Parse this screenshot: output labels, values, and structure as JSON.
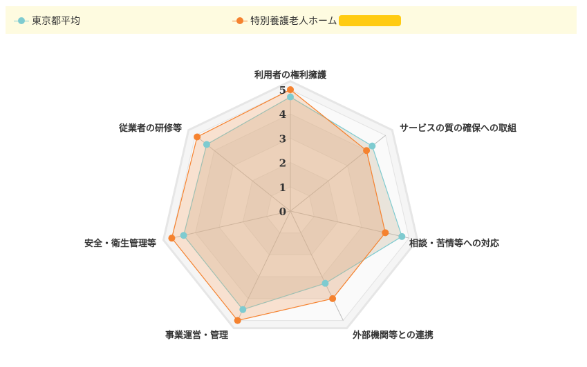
{
  "legend": {
    "items": [
      {
        "label": "東京都平均",
        "color": "#7ecbd0"
      },
      {
        "label": "特別養護老人ホーム",
        "color": "#f5822f",
        "redacted_color": "#ffcb12"
      }
    ]
  },
  "chart_data": {
    "type": "radar",
    "categories": [
      "利用者の権利擁護",
      "サービスの質の確保への取組",
      "相談・苦情等への対応",
      "外部機関等との連携",
      "事業運営・管理",
      "安全・衛生管理等",
      "従業者の研修等"
    ],
    "ticks": [
      "0",
      "1",
      "2",
      "3",
      "4",
      "5"
    ],
    "range": [
      0,
      5
    ],
    "series": [
      {
        "name": "東京都平均",
        "color": "#7ecbd0",
        "values": [
          4.7,
          4.3,
          4.7,
          3.3,
          4.5,
          4.5,
          4.4
        ]
      },
      {
        "name": "特別養護老人ホーム",
        "color": "#f5822f",
        "values": [
          5.0,
          4.0,
          4.0,
          4.0,
          5.0,
          5.0,
          4.9
        ]
      }
    ]
  }
}
